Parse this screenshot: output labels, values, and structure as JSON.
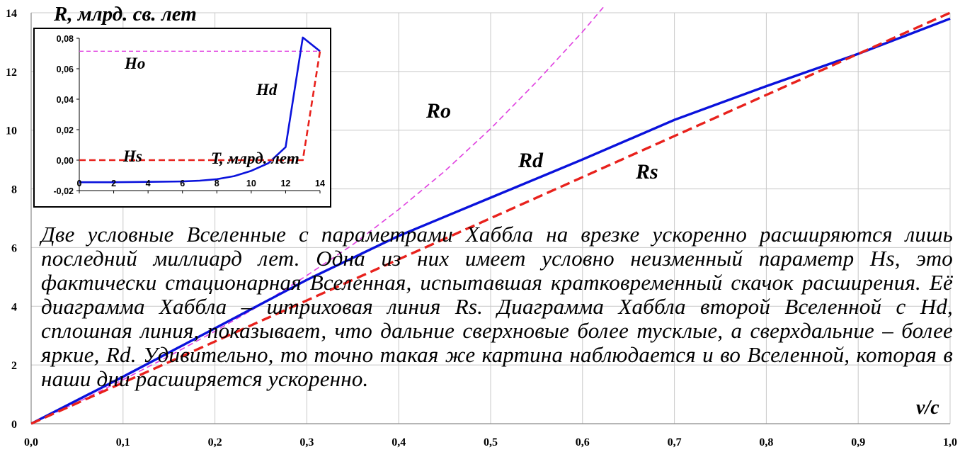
{
  "chart_data": [
    {
      "type": "line",
      "ylabel": "R, млрд. св. лет",
      "xlabel": "v/c",
      "xlim": [
        0,
        1
      ],
      "ylim": [
        0,
        14
      ],
      "x_ticks": [
        "0,0",
        "0,1",
        "0,2",
        "0,3",
        "0,4",
        "0,5",
        "0,6",
        "0,7",
        "0,8",
        "0,9",
        "1,0"
      ],
      "y_ticks": [
        "0",
        "2",
        "4",
        "6",
        "8",
        "10",
        "12",
        "14"
      ],
      "grid": true,
      "series": [
        {
          "name": "Ro",
          "style": "dashed-thin",
          "color": "#e040e0",
          "x": [
            0,
            0.05,
            0.1,
            0.15,
            0.2,
            0.25,
            0.3,
            0.35,
            0.4,
            0.45,
            0.5,
            0.55,
            0.6,
            0.65
          ],
          "y": [
            0,
            0.72,
            1.5,
            2.3,
            3.15,
            4.05,
            5.05,
            6.1,
            7.3,
            8.6,
            10.05,
            11.65,
            13.35,
            15.2
          ]
        },
        {
          "name": "Rd",
          "style": "solid",
          "color": "#0a12dc",
          "x": [
            0,
            0.1,
            0.2,
            0.3,
            0.4,
            0.5,
            0.6,
            0.7,
            0.8,
            0.9,
            1.0
          ],
          "y": [
            0,
            1.6,
            3.25,
            4.9,
            6.4,
            7.7,
            9.0,
            10.35,
            11.5,
            12.6,
            13.8
          ]
        },
        {
          "name": "Rs",
          "style": "dashed",
          "color": "#e8211c",
          "x": [
            0,
            0.1,
            0.2,
            0.3,
            0.4,
            0.5,
            0.6,
            0.7,
            0.8,
            0.9,
            1.0
          ],
          "y": [
            0,
            1.4,
            2.8,
            4.2,
            5.6,
            7.0,
            8.4,
            9.8,
            11.2,
            12.6,
            14.0
          ]
        }
      ]
    },
    {
      "type": "line",
      "inset": true,
      "xlabel": "T, млрд. лет",
      "xlim": [
        0,
        14
      ],
      "ylim": [
        -0.02,
        0.08
      ],
      "x_ticks": [
        "0",
        "2",
        "4",
        "6",
        "8",
        "10",
        "12",
        "14"
      ],
      "y_ticks": [
        "-0,02",
        "0,00",
        "0,02",
        "0,04",
        "0,06",
        "0,08"
      ],
      "series": [
        {
          "name": "Ho",
          "style": "dashed-thin",
          "color": "#e040e0",
          "x": [
            0,
            14
          ],
          "y": [
            0.0715,
            0.0715
          ]
        },
        {
          "name": "Hd",
          "style": "solid",
          "color": "#0a12dc",
          "x": [
            0,
            2,
            4,
            6,
            7,
            8,
            9,
            10,
            11,
            12,
            13,
            14
          ],
          "y": [
            -0.0145,
            -0.0145,
            -0.0143,
            -0.014,
            -0.0135,
            -0.0125,
            -0.0105,
            -0.007,
            -0.002,
            0.0085,
            0.0805,
            0.0715
          ]
        },
        {
          "name": "Hs",
          "style": "dashed",
          "color": "#e8211c",
          "x": [
            0,
            12,
            13,
            14
          ],
          "y": [
            0,
            0,
            0,
            0.0715
          ]
        }
      ]
    }
  ],
  "caption": "Две условные Вселенные с параметрами Хаббла на врезке ускоренно расширяются лишь последний миллиард лет. Одна из них имеет условно неизменный параметр Hs, это фактически стационарная Вселенная, испытавшая кратковременный скачок расширения. Её диаграмма Хаббла – штриховая линия Rs. Диаграмма Хаббла второй Вселенной с Hd, сплошная линия, показывает, что дальние сверхновые более тусклые, а сверхдальние – более яркие, Rd. Удивительно, то точно такая же картина наблюдается и во Вселенной, которая в наши дни расширяется ускоренно."
}
